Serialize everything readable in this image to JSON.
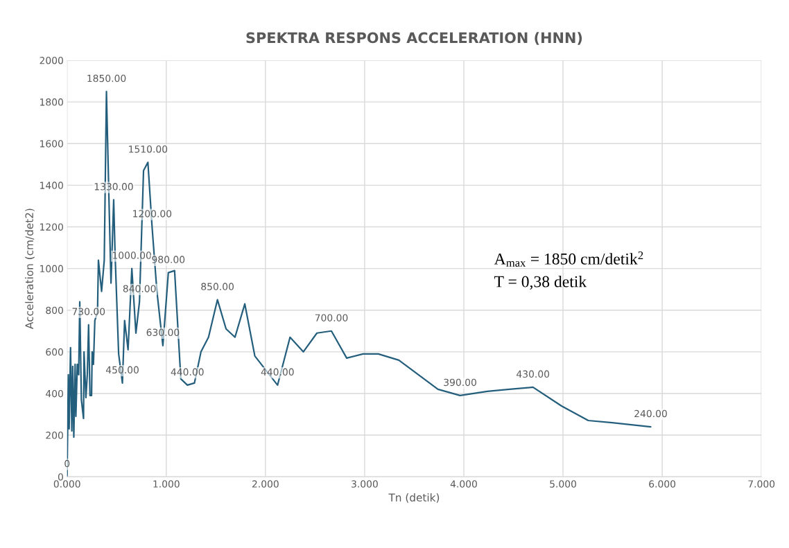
{
  "chart_data": {
    "type": "line",
    "title": "SPEKTRA RESPONS ACCELERATION (HNN)",
    "xlabel": "Tn (detik)",
    "ylabel": "Acceleration (cm/det2)",
    "xlim": [
      0,
      7
    ],
    "xticks": [
      {
        "value": 0,
        "label": "0.000"
      },
      {
        "value": 1,
        "label": "1.000"
      },
      {
        "value": 2,
        "label": "2.000"
      },
      {
        "value": 3,
        "label": "3.000"
      },
      {
        "value": 4,
        "label": "4.000"
      },
      {
        "value": 5,
        "label": "5.000"
      },
      {
        "value": 6,
        "label": "6.000"
      },
      {
        "value": 7,
        "label": "7.000"
      }
    ],
    "ylim": [
      0,
      2000
    ],
    "yticks": [
      0,
      200,
      400,
      600,
      800,
      1000,
      1200,
      1400,
      1600,
      1800,
      2000
    ],
    "grid": true,
    "marker": "none",
    "line_style": "solid",
    "annotations": [
      "A$_{max}$ = 1850 cm/detik$^{2}$",
      "T = 0,38 detik"
    ],
    "series": [
      {
        "color": "#245e7d",
        "x": [
          0,
          0.013,
          0.021,
          0.035,
          0.048,
          0.057,
          0.068,
          0.081,
          0.089,
          0.103,
          0.117,
          0.128,
          0.144,
          0.166,
          0.171,
          0.19,
          0.204,
          0.217,
          0.231,
          0.247,
          0.253,
          0.266,
          0.28,
          0.307,
          0.316,
          0.348,
          0.375,
          0.397,
          0.422,
          0.443,
          0.47,
          0.484,
          0.52,
          0.558,
          0.58,
          0.615,
          0.653,
          0.694,
          0.73,
          0.771,
          0.815,
          0.857,
          0.906,
          0.966,
          1.021,
          1.084,
          1.147,
          1.213,
          1.284,
          1.35,
          1.426,
          1.516,
          1.603,
          1.693,
          1.792,
          1.893,
          2.122,
          2.248,
          2.382,
          2.519,
          2.665,
          2.819,
          2.984,
          3.138,
          3.345,
          3.739,
          3.962,
          4.237,
          4.461,
          4.697,
          4.985,
          5.255,
          5.496,
          5.884
        ],
        "values": [
          0,
          490,
          230,
          620,
          220,
          530,
          190,
          540,
          290,
          540,
          490,
          840,
          370,
          280,
          600,
          380,
          490,
          730,
          390,
          390,
          600,
          540,
          750,
          790,
          1040,
          890,
          1040,
          1850,
          1340,
          930,
          1330,
          1070,
          590,
          450,
          750,
          610,
          1000,
          690,
          840,
          1470,
          1510,
          1200,
          890,
          630,
          980,
          990,
          470,
          440,
          450,
          600,
          670,
          850,
          710,
          670,
          830,
          580,
          440,
          670,
          600,
          690,
          700,
          570,
          590,
          590,
          560,
          420,
          390,
          410,
          420,
          430,
          340,
          270,
          260,
          240
        ],
        "value_labels": [
          "0",
          null,
          null,
          null,
          null,
          null,
          null,
          null,
          null,
          null,
          null,
          null,
          null,
          null,
          null,
          null,
          null,
          "730.00",
          null,
          null,
          null,
          null,
          null,
          null,
          null,
          null,
          null,
          "1850.00",
          null,
          null,
          "1330.00",
          null,
          null,
          "450.00",
          null,
          null,
          "1000.00",
          null,
          "840.00",
          null,
          "1510.00",
          "1200.00",
          null,
          "630.00",
          "980.00",
          null,
          null,
          "440.00",
          null,
          null,
          null,
          "850.00",
          null,
          null,
          null,
          null,
          "440.00",
          null,
          null,
          null,
          "700.00",
          null,
          null,
          null,
          null,
          null,
          "390.00",
          null,
          null,
          "430.00",
          null,
          null,
          null,
          "240.00"
        ]
      }
    ]
  }
}
